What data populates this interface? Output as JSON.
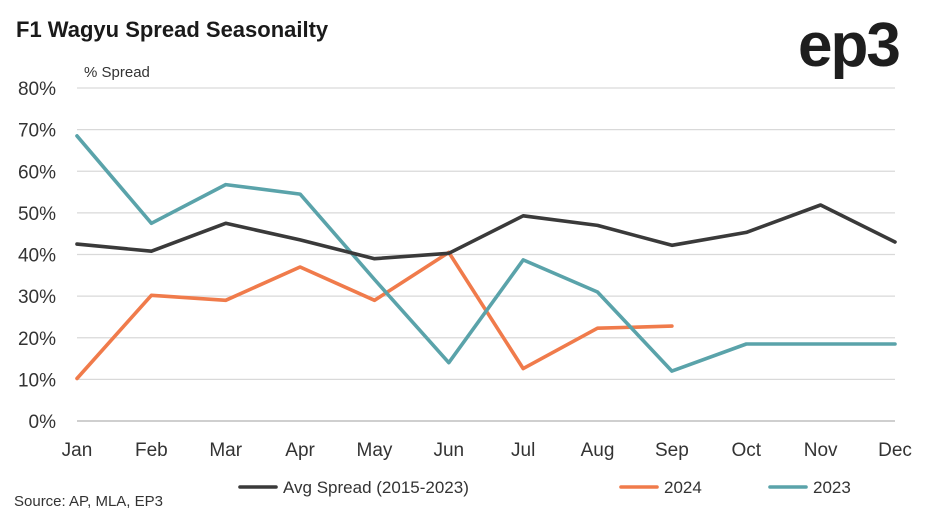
{
  "chart_data": {
    "type": "line",
    "title": "F1 Wagyu Spread Seasonailty",
    "ylabel": "% Spread",
    "xlabel": "",
    "categories": [
      "Jan",
      "Feb",
      "Mar",
      "Apr",
      "May",
      "Jun",
      "Jul",
      "Aug",
      "Sep",
      "Oct",
      "Nov",
      "Dec"
    ],
    "ylim": [
      0,
      80
    ],
    "yticks": [
      0,
      10,
      20,
      30,
      40,
      50,
      60,
      70,
      80
    ],
    "ytick_labels": [
      "0%",
      "10%",
      "20%",
      "30%",
      "40%",
      "50%",
      "60%",
      "70%",
      "80%"
    ],
    "grid": true,
    "legend_position": "bottom",
    "series": [
      {
        "name": "Avg Spread (2015-2023)",
        "color": "#3a3a3a",
        "values": [
          42.5,
          40.8,
          47.5,
          43.5,
          39.0,
          40.3,
          49.3,
          47.0,
          42.2,
          45.3,
          51.9,
          43.0
        ]
      },
      {
        "name": "2024",
        "color": "#f07b4b",
        "values": [
          10.2,
          30.2,
          29.0,
          37.0,
          29.0,
          40.5,
          12.6,
          22.3,
          22.8,
          null,
          null,
          null
        ]
      },
      {
        "name": "2023",
        "color": "#5aa3aa",
        "values": [
          68.5,
          47.5,
          56.8,
          54.5,
          34.0,
          14.0,
          38.7,
          31.0,
          12.0,
          18.5,
          18.5,
          18.5
        ]
      }
    ],
    "source": "Source: AP, MLA, EP3"
  },
  "logo": {
    "text": "ep3",
    "color": "#1e1e1e"
  }
}
